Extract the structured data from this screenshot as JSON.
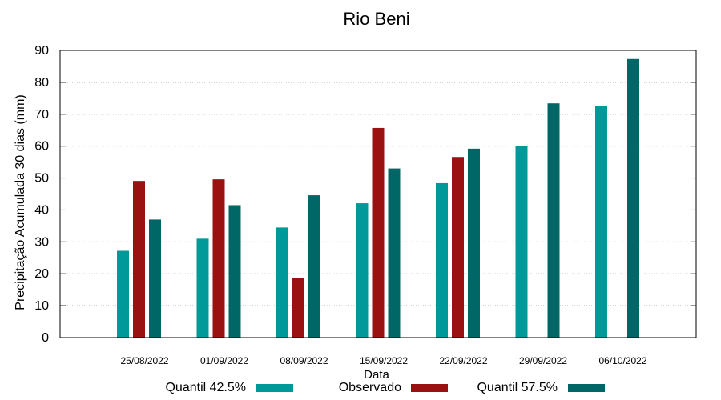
{
  "chart_data": {
    "type": "bar",
    "title": "Rio Beni",
    "xlabel": "Data",
    "ylabel": "Precipitação Acumulada 30 dias (mm)",
    "ylim": [
      0,
      90
    ],
    "yticks": [
      0,
      10,
      20,
      30,
      40,
      50,
      60,
      70,
      80,
      90
    ],
    "grid": true,
    "legend_position": "bottom",
    "categories": [
      "25/08/2022",
      "01/09/2022",
      "08/09/2022",
      "15/09/2022",
      "22/09/2022",
      "29/09/2022",
      "06/10/2022"
    ],
    "series": [
      {
        "name": "Quantil 42.5%",
        "color": "#009999",
        "values": [
          27.2,
          31.0,
          34.5,
          42.1,
          48.4,
          60.1,
          72.5
        ]
      },
      {
        "name": "Observado",
        "color": "#991111",
        "values": [
          49.1,
          49.6,
          18.8,
          65.7,
          56.6,
          null,
          null
        ]
      },
      {
        "name": "Quantil 57.5%",
        "color": "#006666",
        "values": [
          37.0,
          41.5,
          44.6,
          53.0,
          59.2,
          73.4,
          87.3
        ]
      }
    ]
  }
}
